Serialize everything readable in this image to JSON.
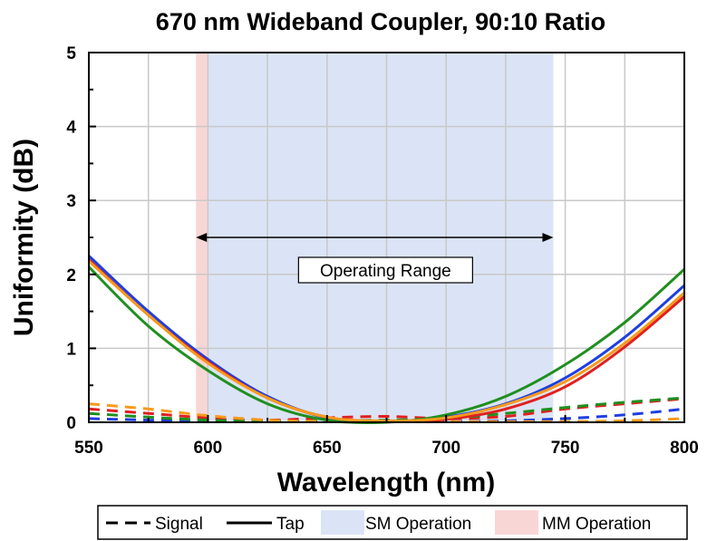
{
  "chart_data": {
    "type": "line",
    "title": "670 nm Wideband Coupler, 90:10 Ratio",
    "xlabel": "Wavelength (nm)",
    "ylabel": "Uniformity (dB)",
    "xlim": [
      550,
      800
    ],
    "ylim": [
      0,
      5
    ],
    "x_ticks": [
      "550",
      "600",
      "650",
      "700",
      "750",
      "800"
    ],
    "y_ticks": [
      "0",
      "1",
      "2",
      "3",
      "4",
      "5"
    ],
    "grid": true,
    "colors": {
      "blue": "#1f3fe0",
      "red": "#e02020",
      "green": "#1f8f1f",
      "orange": "#f79a1c",
      "sm_band": "#dbe4f6",
      "mm_band": "#f9d6d6"
    },
    "regions": [
      {
        "name": "MM Operation",
        "x_start": 595,
        "x_end": 600,
        "color": "#f9d6d6"
      },
      {
        "name": "SM Operation",
        "x_start": 600,
        "x_end": 745,
        "color": "#dbe4f6"
      }
    ],
    "annotations": [
      {
        "text": "Operating Range",
        "x_start": 595,
        "x_end": 745,
        "y": 2.5
      }
    ],
    "legend": {
      "position": "bottom",
      "entries": [
        {
          "label": "Signal",
          "style": "dashed"
        },
        {
          "label": "Tap",
          "style": "solid"
        },
        {
          "label": "SM Operation",
          "style": "patch",
          "color": "#dbe4f6"
        },
        {
          "label": "MM Operation",
          "style": "patch",
          "color": "#f9d6d6"
        }
      ]
    },
    "series": [
      {
        "color": "blue",
        "style": "solid",
        "x": [
          550,
          575,
          600,
          625,
          650,
          675,
          700,
          725,
          750,
          775,
          800
        ],
        "y": [
          2.25,
          1.5,
          0.85,
          0.35,
          0.06,
          0.01,
          0.07,
          0.25,
          0.6,
          1.15,
          1.85
        ]
      },
      {
        "color": "red",
        "style": "solid",
        "x": [
          550,
          575,
          600,
          625,
          650,
          675,
          700,
          725,
          750,
          775,
          800
        ],
        "y": [
          2.2,
          1.45,
          0.82,
          0.33,
          0.07,
          0.01,
          0.04,
          0.18,
          0.48,
          1.02,
          1.7
        ]
      },
      {
        "color": "green",
        "style": "solid",
        "x": [
          550,
          575,
          600,
          625,
          650,
          675,
          700,
          725,
          750,
          775,
          800
        ],
        "y": [
          2.1,
          1.3,
          0.7,
          0.25,
          0.03,
          0.0,
          0.1,
          0.35,
          0.78,
          1.35,
          2.07
        ]
      },
      {
        "color": "orange",
        "style": "solid",
        "x": [
          550,
          575,
          600,
          625,
          650,
          675,
          700,
          725,
          750,
          775,
          800
        ],
        "y": [
          2.18,
          1.45,
          0.8,
          0.33,
          0.07,
          0.02,
          0.06,
          0.24,
          0.55,
          1.07,
          1.75
        ]
      },
      {
        "color": "blue",
        "style": "dashed",
        "x": [
          550,
          575,
          600,
          625,
          650,
          675,
          700,
          725,
          750,
          775,
          800
        ],
        "y": [
          0.05,
          0.03,
          0.02,
          0.01,
          0.01,
          0.01,
          0.01,
          0.02,
          0.05,
          0.1,
          0.18
        ]
      },
      {
        "color": "red",
        "style": "dashed",
        "x": [
          550,
          575,
          600,
          625,
          650,
          675,
          700,
          725,
          750,
          775,
          800
        ],
        "y": [
          0.18,
          0.12,
          0.06,
          0.03,
          0.06,
          0.08,
          0.05,
          0.08,
          0.18,
          0.25,
          0.32
        ]
      },
      {
        "color": "green",
        "style": "dashed",
        "x": [
          550,
          575,
          600,
          625,
          650,
          675,
          700,
          725,
          750,
          775,
          800
        ],
        "y": [
          0.12,
          0.07,
          0.03,
          0.01,
          0.02,
          0.03,
          0.05,
          0.12,
          0.2,
          0.27,
          0.33
        ]
      },
      {
        "color": "orange",
        "style": "dashed",
        "x": [
          550,
          575,
          600,
          625,
          650,
          675,
          700,
          725,
          750,
          775,
          800
        ],
        "y": [
          0.25,
          0.18,
          0.09,
          0.03,
          0.01,
          0.01,
          0.01,
          0.01,
          0.01,
          0.02,
          0.05
        ]
      }
    ]
  }
}
